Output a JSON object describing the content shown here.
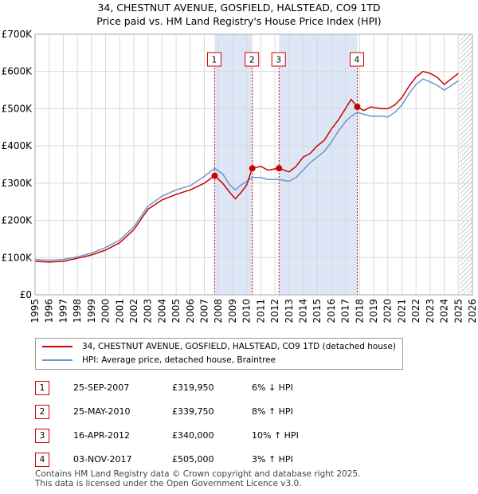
{
  "title_line1": "34, CHESTNUT AVENUE, GOSFIELD, HALSTEAD, CO9 1TD",
  "title_line2": "Price paid vs. HM Land Registry's House Price Index (HPI)",
  "colors": {
    "red": "#cc0000",
    "blue": "#6b96c9",
    "shade": "#dde6f6",
    "grid": "#d9d9d9"
  },
  "chart_data": {
    "type": "line",
    "xlim": [
      1995,
      2026
    ],
    "ylim": [
      0,
      700000
    ],
    "x_ticks": [
      "1995",
      "1996",
      "1997",
      "1998",
      "1999",
      "2000",
      "2001",
      "2002",
      "2003",
      "2004",
      "2005",
      "2006",
      "2007",
      "2008",
      "2009",
      "2010",
      "2011",
      "2012",
      "2013",
      "2014",
      "2015",
      "2016",
      "2017",
      "2018",
      "2019",
      "2020",
      "2021",
      "2022",
      "2023",
      "2024",
      "2025",
      "2026"
    ],
    "y_ticks": [
      {
        "value": 0,
        "label": "£0"
      },
      {
        "value": 100000,
        "label": "£100K"
      },
      {
        "value": 200000,
        "label": "£200K"
      },
      {
        "value": 300000,
        "label": "£300K"
      },
      {
        "value": 400000,
        "label": "£400K"
      },
      {
        "value": 500000,
        "label": "£500K"
      },
      {
        "value": 600000,
        "label": "£600K"
      },
      {
        "value": 700000,
        "label": "£700K"
      }
    ],
    "shaded_ranges": [
      [
        2007.73,
        2010.4
      ],
      [
        2012.29,
        2017.84
      ]
    ],
    "future_hatch_from": 2025.1,
    "series": [
      {
        "name": "34, CHESTNUT AVENUE, GOSFIELD, HALSTEAD, CO9 1TD (detached house)",
        "color": "#cc0000",
        "points": [
          [
            1995.0,
            90000
          ],
          [
            1996.0,
            88000
          ],
          [
            1997.0,
            90000
          ],
          [
            1998.0,
            98000
          ],
          [
            1999.0,
            107000
          ],
          [
            2000.0,
            120000
          ],
          [
            2001.0,
            140000
          ],
          [
            2002.0,
            175000
          ],
          [
            2003.0,
            230000
          ],
          [
            2004.0,
            255000
          ],
          [
            2005.0,
            270000
          ],
          [
            2006.0,
            282000
          ],
          [
            2007.0,
            300000
          ],
          [
            2007.73,
            319950
          ],
          [
            2008.3,
            300000
          ],
          [
            2008.8,
            275000
          ],
          [
            2009.2,
            258000
          ],
          [
            2009.6,
            275000
          ],
          [
            2010.0,
            295000
          ],
          [
            2010.4,
            339750
          ],
          [
            2011.0,
            345000
          ],
          [
            2011.5,
            335000
          ],
          [
            2012.29,
            340000
          ],
          [
            2013.0,
            330000
          ],
          [
            2013.5,
            345000
          ],
          [
            2014.0,
            370000
          ],
          [
            2014.5,
            380000
          ],
          [
            2015.0,
            400000
          ],
          [
            2015.5,
            415000
          ],
          [
            2016.0,
            445000
          ],
          [
            2016.5,
            470000
          ],
          [
            2017.0,
            500000
          ],
          [
            2017.4,
            525000
          ],
          [
            2017.84,
            505000
          ],
          [
            2018.3,
            495000
          ],
          [
            2018.8,
            505000
          ],
          [
            2019.5,
            500000
          ],
          [
            2020.0,
            500000
          ],
          [
            2020.5,
            510000
          ],
          [
            2021.0,
            530000
          ],
          [
            2021.5,
            560000
          ],
          [
            2022.0,
            585000
          ],
          [
            2022.5,
            600000
          ],
          [
            2023.0,
            595000
          ],
          [
            2023.5,
            585000
          ],
          [
            2024.0,
            565000
          ],
          [
            2024.5,
            580000
          ],
          [
            2025.0,
            595000
          ]
        ]
      },
      {
        "name": "HPI: Average price, detached house, Braintree",
        "color": "#6b96c9",
        "points": [
          [
            1995.0,
            95000
          ],
          [
            1996.0,
            93000
          ],
          [
            1997.0,
            95000
          ],
          [
            1998.0,
            102000
          ],
          [
            1999.0,
            112000
          ],
          [
            2000.0,
            127000
          ],
          [
            2001.0,
            147000
          ],
          [
            2002.0,
            183000
          ],
          [
            2003.0,
            238000
          ],
          [
            2004.0,
            265000
          ],
          [
            2005.0,
            282000
          ],
          [
            2006.0,
            293000
          ],
          [
            2007.0,
            318000
          ],
          [
            2007.73,
            340000
          ],
          [
            2008.3,
            325000
          ],
          [
            2008.8,
            295000
          ],
          [
            2009.2,
            282000
          ],
          [
            2009.6,
            295000
          ],
          [
            2010.0,
            305000
          ],
          [
            2010.4,
            315000
          ],
          [
            2011.0,
            315000
          ],
          [
            2011.5,
            310000
          ],
          [
            2012.29,
            310000
          ],
          [
            2013.0,
            305000
          ],
          [
            2013.5,
            315000
          ],
          [
            2014.0,
            335000
          ],
          [
            2014.5,
            355000
          ],
          [
            2015.0,
            370000
          ],
          [
            2015.5,
            385000
          ],
          [
            2016.0,
            410000
          ],
          [
            2016.5,
            440000
          ],
          [
            2017.0,
            465000
          ],
          [
            2017.4,
            480000
          ],
          [
            2017.84,
            490000
          ],
          [
            2018.3,
            485000
          ],
          [
            2018.8,
            480000
          ],
          [
            2019.5,
            480000
          ],
          [
            2020.0,
            478000
          ],
          [
            2020.5,
            490000
          ],
          [
            2021.0,
            510000
          ],
          [
            2021.5,
            540000
          ],
          [
            2022.0,
            565000
          ],
          [
            2022.5,
            580000
          ],
          [
            2023.0,
            572000
          ],
          [
            2023.5,
            563000
          ],
          [
            2024.0,
            550000
          ],
          [
            2024.5,
            562000
          ],
          [
            2025.0,
            575000
          ]
        ]
      }
    ],
    "sales": [
      {
        "label": "1",
        "x": 2007.73,
        "y": 319950
      },
      {
        "label": "2",
        "x": 2010.4,
        "y": 339750
      },
      {
        "label": "3",
        "x": 2012.29,
        "y": 340000
      },
      {
        "label": "4",
        "x": 2017.84,
        "y": 505000
      }
    ]
  },
  "legend": {
    "property": "34, CHESTNUT AVENUE, GOSFIELD, HALSTEAD, CO9 1TD (detached house)",
    "hpi": "HPI: Average price, detached house, Braintree"
  },
  "sales_table": [
    {
      "num": "1",
      "date": "25-SEP-2007",
      "price": "£319,950",
      "hpi": "6% ↓ HPI"
    },
    {
      "num": "2",
      "date": "25-MAY-2010",
      "price": "£339,750",
      "hpi": "8% ↑ HPI"
    },
    {
      "num": "3",
      "date": "16-APR-2012",
      "price": "£340,000",
      "hpi": "10% ↑ HPI"
    },
    {
      "num": "4",
      "date": "03-NOV-2017",
      "price": "£505,000",
      "hpi": "3% ↑ HPI"
    }
  ],
  "footer": {
    "line1": "Contains HM Land Registry data © Crown copyright and database right 2025.",
    "line2": "This data is licensed under the Open Government Licence v3.0."
  }
}
